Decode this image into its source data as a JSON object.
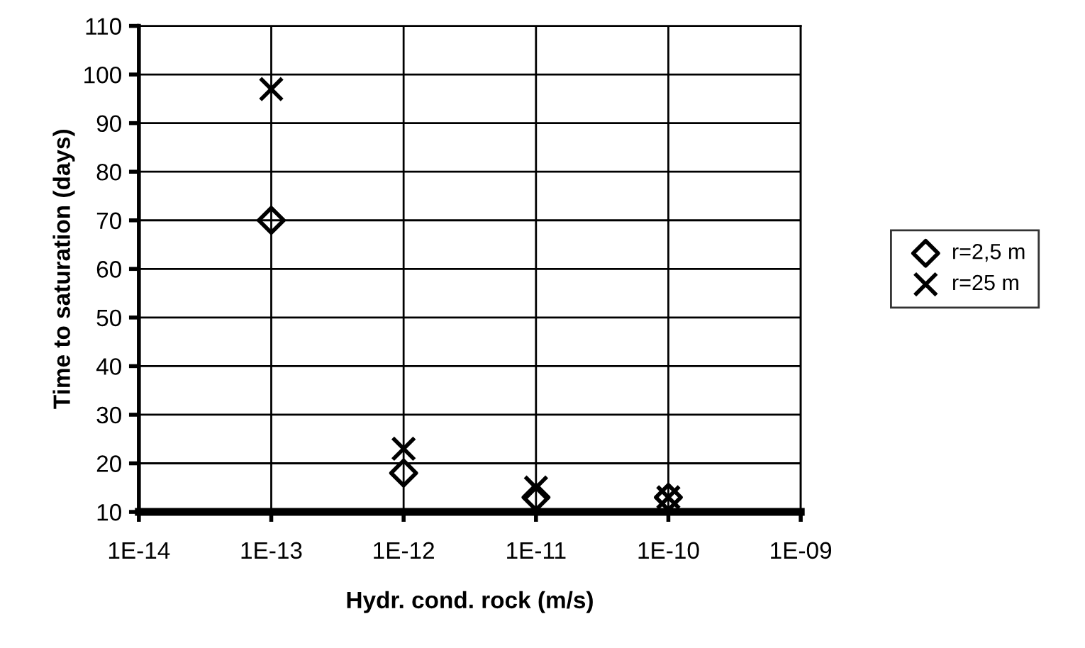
{
  "chart_data": {
    "type": "scatter",
    "xlabel": "Hydr. cond. rock (m/s)",
    "ylabel": "Time to saturation (days)",
    "log": "x",
    "xlim": [
      1e-14,
      1e-09
    ],
    "xticks": [
      {
        "value": 1e-14,
        "label": "1E-14"
      },
      {
        "value": 1e-13,
        "label": "1E-13"
      },
      {
        "value": 1e-12,
        "label": "1E-12"
      },
      {
        "value": 1e-11,
        "label": "1E-11"
      },
      {
        "value": 1e-10,
        "label": "1E-10"
      },
      {
        "value": 1e-09,
        "label": "1E-09"
      }
    ],
    "ylim": [
      10,
      110
    ],
    "yticks": [
      10,
      20,
      30,
      40,
      50,
      60,
      70,
      80,
      90,
      100,
      110
    ],
    "grid": true,
    "legend": "right",
    "series": [
      {
        "name": "r=2,5 m",
        "color": "#000000",
        "marker": "diamond",
        "x": [
          1e-13,
          1e-12,
          1e-11,
          1e-10
        ],
        "values": [
          70,
          18,
          13,
          13
        ]
      },
      {
        "name": "r=25 m",
        "color": "#000000",
        "marker": "cross",
        "x": [
          1e-13,
          1e-12,
          1e-11,
          1e-10
        ],
        "values": [
          97,
          23,
          15,
          13
        ]
      }
    ]
  }
}
